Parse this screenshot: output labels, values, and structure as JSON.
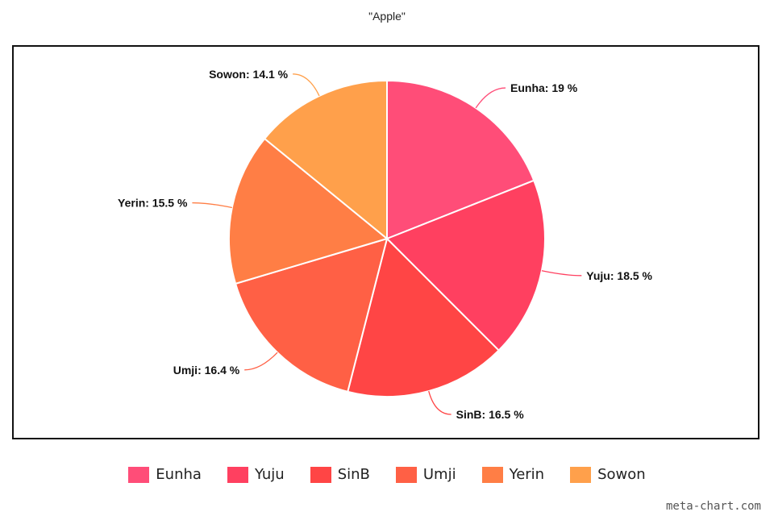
{
  "chart_data": {
    "type": "pie",
    "title": "\"Apple\"",
    "categories": [
      "Eunha",
      "Yuju",
      "SinB",
      "Umji",
      "Yerin",
      "Sowon"
    ],
    "values": [
      19,
      18.5,
      16.5,
      16.4,
      15.5,
      14.1
    ],
    "labels": [
      "Eunha: 19 %",
      "Yuju: 18.5 %",
      "SinB: 16.5 %",
      "Umji: 16.4 %",
      "Yerin: 15.5 %",
      "Sowon: 14.1 %"
    ],
    "colors": [
      "#ff4d78",
      "#ff4060",
      "#ff4545",
      "#ff6045",
      "#ff7e45",
      "#ffa04b"
    ],
    "legend_position": "bottom"
  },
  "watermark": "meta-chart.com"
}
